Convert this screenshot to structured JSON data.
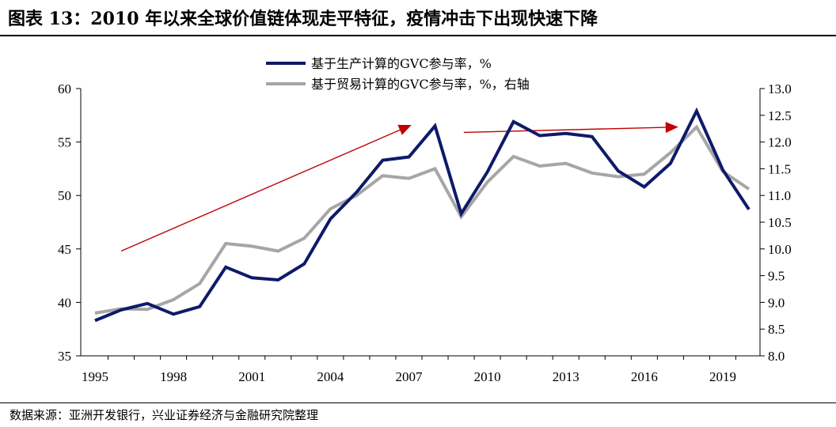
{
  "title": "图表 13：2010 年以来全球价值链体现走平特征，疫情冲击下出现快速下降",
  "source": "数据来源：亚洲开发银行，兴业证券经济与金融研究院整理",
  "colors": {
    "series1": "#0d1a6a",
    "series2": "#a6a6a6",
    "arrow": "#c00000"
  },
  "chart_data": {
    "type": "line",
    "x": [
      1995,
      1996,
      1997,
      1998,
      1999,
      2000,
      2001,
      2002,
      2003,
      2004,
      2005,
      2006,
      2007,
      2008,
      2009,
      2010,
      2011,
      2012,
      2013,
      2014,
      2015,
      2016,
      2017,
      2018,
      2019,
      2020
    ],
    "xticks": [
      "1995",
      "1998",
      "2001",
      "2004",
      "2007",
      "2010",
      "2013",
      "2016",
      "2019"
    ],
    "xtick_values": [
      1995,
      1998,
      2001,
      2004,
      2007,
      2010,
      2013,
      2016,
      2019
    ],
    "ylim": [
      35,
      60
    ],
    "yticks": [
      "35",
      "40",
      "45",
      "50",
      "55",
      "60"
    ],
    "y2lim": [
      8.0,
      13.0
    ],
    "y2ticks": [
      "8.0",
      "8.5",
      "9.0",
      "9.5",
      "10.0",
      "10.5",
      "11.0",
      "11.5",
      "12.0",
      "12.5",
      "13.0"
    ],
    "series": [
      {
        "name": "基于生产计算的GVC参与率，%",
        "axis": "left",
        "values": [
          38.3,
          39.3,
          39.9,
          38.9,
          39.6,
          43.3,
          42.3,
          42.1,
          43.6,
          47.8,
          50.3,
          53.3,
          53.6,
          56.5,
          48.3,
          52.2,
          56.9,
          55.6,
          55.8,
          55.5,
          52.3,
          50.8,
          53.0,
          57.9,
          52.4,
          48.7
        ]
      },
      {
        "name": "基于贸易计算的GVC参与率，%，右轴",
        "axis": "right",
        "values": [
          8.8,
          8.88,
          8.87,
          9.05,
          9.35,
          10.1,
          10.05,
          9.96,
          10.2,
          10.75,
          11.0,
          11.37,
          11.32,
          11.5,
          10.6,
          11.25,
          11.73,
          11.55,
          11.6,
          11.42,
          11.35,
          11.4,
          11.8,
          12.28,
          11.45,
          11.12
        ]
      }
    ],
    "arrows": [
      {
        "from": [
          1996,
          44.8
        ],
        "to": [
          2007.1,
          56.6
        ]
      },
      {
        "from": [
          2009.1,
          55.9
        ],
        "to": [
          2017.3,
          56.4
        ]
      }
    ],
    "legend_position": "top-center"
  }
}
